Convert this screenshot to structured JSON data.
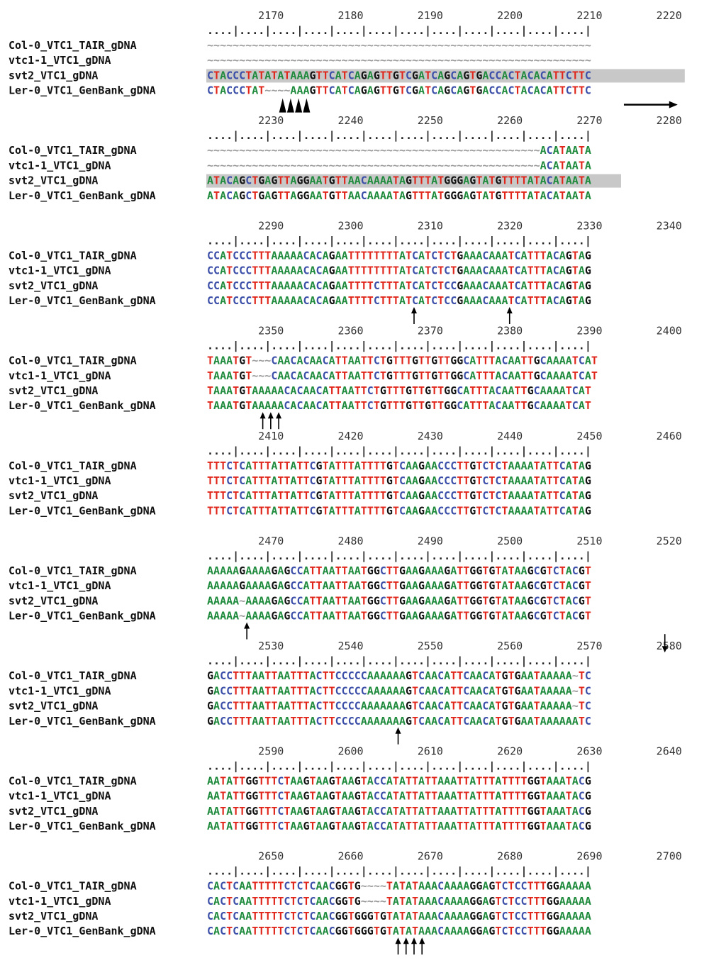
{
  "colors": {
    "A": "#1e8a3c",
    "C": "#3b4ea8",
    "G": "#111111",
    "T": "#e0261b",
    "gap": "#9a9a9a",
    "highlight": "#c8c8c8",
    "mark": "#000000"
  },
  "ruler_pattern": "....|....|....|....|....|....|....|....|....|....|....|....|",
  "blocks": [
    {
      "numbers": [
        "2170",
        "2180",
        "2190",
        "2200",
        "2210",
        "2220"
      ],
      "rows": [
        {
          "label": "Col-0_VTC1_TAIR_gDNA",
          "seq": "~~~~~~~~~~~~~~~~~~~~~~~~~~~~~~~~~~~~~~~~~~~~~~~~~~~~~~~~~~~~"
        },
        {
          "label": "vtc1-1_VTC1_gDNA",
          "seq": "~~~~~~~~~~~~~~~~~~~~~~~~~~~~~~~~~~~~~~~~~~~~~~~~~~~~~~~~~~~~"
        },
        {
          "label": "svt2_VTC1_gDNA",
          "seq": "CTACCCTATATATAAAGTTCATCAGAGTTGTCGATCAGCAGTGACCACTACACATTCTTC",
          "highlight": [
            0,
            60
          ]
        },
        {
          "label": "Ler-0_VTC1_GenBank_gDNA",
          "seq": "CTACCCTAT~~~~AAAGTTCATCAGAGTTGTCGATCAGCAGTGACCACTACACATTCTTC"
        }
      ],
      "marks": [
        {
          "type": "triangles",
          "cols": [
            9,
            10,
            11,
            12
          ]
        },
        {
          "type": "right-arrow",
          "from": 52,
          "to": 60
        }
      ]
    },
    {
      "numbers": [
        "2230",
        "2240",
        "2250",
        "2260",
        "2270",
        "2280"
      ],
      "rows": [
        {
          "label": "Col-0_VTC1_TAIR_gDNA",
          "seq": "~~~~~~~~~~~~~~~~~~~~~~~~~~~~~~~~~~~~~~~~~~~~~~~~~~~~ACATAATA"
        },
        {
          "label": "vtc1-1_VTC1_gDNA",
          "seq": "~~~~~~~~~~~~~~~~~~~~~~~~~~~~~~~~~~~~~~~~~~~~~~~~~~~~ACATAATA"
        },
        {
          "label": "svt2_VTC1_gDNA",
          "seq": "ATACAGCTGAGTTAGGAATGTTAACAAAATAGTTTATGGGAGTATGTTTTATACATAATA",
          "highlight": [
            0,
            52
          ]
        },
        {
          "label": "Ler-0_VTC1_GenBank_gDNA",
          "seq": "ATACAGCTGAGTTAGGAATGTTAACAAAATAGTTTATGGGAGTATGTTTTATACATAATA"
        }
      ],
      "marks": []
    },
    {
      "numbers": [
        "2290",
        "2300",
        "2310",
        "2320",
        "2330",
        "2340"
      ],
      "rows": [
        {
          "label": "Col-0_VTC1_TAIR_gDNA",
          "seq": "CCATCCCTTTAAAAACACAGAATTTTTTTTATCATCTCTGAAACAAATCATTTACAGTAG"
        },
        {
          "label": "vtc1-1_VTC1_gDNA",
          "seq": "CCATCCCTTTAAAAACACAGAATTTTTTTTATCATCTCTGAAACAAATCATTTACAGTAG"
        },
        {
          "label": "svt2_VTC1_gDNA",
          "seq": "CCATCCCTTTAAAAACACAGAATTTTCTTTATCATCTCCGAAACAAATCATTTACAGTAG"
        },
        {
          "label": "Ler-0_VTC1_GenBank_gDNA",
          "seq": "CCATCCCTTTAAAAACACAGAATTTTCTTTATCATCTCCGAAACAAATCATTTACAGTAG"
        }
      ],
      "marks": [
        {
          "type": "up-arrows",
          "cols": [
            26,
            38
          ]
        }
      ]
    },
    {
      "numbers": [
        "2350",
        "2360",
        "2370",
        "2380",
        "2390",
        "2400"
      ],
      "rows": [
        {
          "label": "Col-0_VTC1_TAIR_gDNA",
          "seq": "TAAATGT~~~CAACACAACATTAATTCTGTTTGTTGTTGGCATTTACAATTGCAAAATCAT"
        },
        {
          "label": "vtc1-1_VTC1_gDNA",
          "seq": "TAAATGT~~~CAACACAACATTAATTCTGTTTGTTGTTGGCATTTACAATTGCAAAATCAT"
        },
        {
          "label": "svt2_VTC1_gDNA",
          "seq": "TAAATGTAAAAACACAACATTAATTCTGTTTGTTGTTGGCATTTACAATTGCAAAATCAT"
        },
        {
          "label": "Ler-0_VTC1_GenBank_gDNA",
          "seq": "TAAATGTAAAAACACAACATTAATTCTGTTTGTTGTTGGCATTTACAATTGCAAAATCAT"
        }
      ],
      "marks": [
        {
          "type": "up-arrows",
          "cols": [
            7,
            8,
            9
          ]
        }
      ]
    },
    {
      "numbers": [
        "2410",
        "2420",
        "2430",
        "2440",
        "2450",
        "2460"
      ],
      "rows": [
        {
          "label": "Col-0_VTC1_TAIR_gDNA",
          "seq": "TTTCTCATTTATTATTCGTATTTATTTTGTCAAGAACCCTTGTCTCTAAAATATTCATAG"
        },
        {
          "label": "vtc1-1_VTC1_gDNA",
          "seq": "TTTCTCATTTATTATTCGTATTTATTTTGTCAAGAACCCTTGTCTCTAAAATATTCATAG"
        },
        {
          "label": "svt2_VTC1_gDNA",
          "seq": "TTTCTCATTTATTATTCGTATTTATTTTGTCAAGAACCCTTGTCTCTAAAATATTCATAG"
        },
        {
          "label": "Ler-0_VTC1_GenBank_gDNA",
          "seq": "TTTCTCATTTATTATTCGTATTTATTTTGTCAAGAACCCTTGTCTCTAAAATATTCATAG"
        }
      ],
      "marks": []
    },
    {
      "numbers": [
        "2470",
        "2480",
        "2490",
        "2500",
        "2510",
        "2520"
      ],
      "rows": [
        {
          "label": "Col-0_VTC1_TAIR_gDNA",
          "seq": "AAAAAGAAAAGAGCCATTAATTAATGGCTTGAAGAAAGATTGGTGTATAAGCGTCTACGT"
        },
        {
          "label": "vtc1-1_VTC1_gDNA",
          "seq": "AAAAAGAAAAGAGCCATTAATTAATGGCTTGAAGAAAGATTGGTGTATAAGCGTCTACGT"
        },
        {
          "label": "svt2_VTC1_gDNA",
          "seq": "AAAAA~AAAAGAGCCATTAATTAATGGCTTGAAGAAAGATTGGTGTATAAGCGTCTACGT"
        },
        {
          "label": "Ler-0_VTC1_GenBank_gDNA",
          "seq": "AAAAA~AAAAGAGCCATTAATTAATGGCTTGAAGAAAGATTGGTGTATAAGCGTCTACGT"
        }
      ],
      "marks": [
        {
          "type": "up-arrows",
          "cols": [
            5
          ]
        }
      ]
    },
    {
      "numbers": [
        "2530",
        "2540",
        "2550",
        "2560",
        "2570",
        "2580"
      ],
      "rows": [
        {
          "label": "Col-0_VTC1_TAIR_gDNA",
          "seq": "GACCTTTAATTAATTTACTTCCCCCAAAAAAGTCAACATTCAACATGTGAATAAAAA~TC"
        },
        {
          "label": "vtc1-1_VTC1_gDNA",
          "seq": "GACCTTTAATTAATTTACTTCCCCCAAAAAAGTCAACATTCAACATGTGAATAAAAA~TC"
        },
        {
          "label": "svt2_VTC1_gDNA",
          "seq": "GACCTTTAATTAATTTACTTCCCCAAAAAAAGTCAACATTCAACATGTGAATAAAAA~TC"
        },
        {
          "label": "Ler-0_VTC1_GenBank_gDNA",
          "seq": "GACCTTTAATTAATTTACTTCCCCAAAAAAAGTCAACATTCAACATGTGAATAAAAAATC"
        }
      ],
      "marks": [
        {
          "type": "up-arrows",
          "cols": [
            24
          ]
        },
        {
          "type": "down-arrow",
          "cols": [
            57
          ]
        }
      ]
    },
    {
      "numbers": [
        "2590",
        "2600",
        "2610",
        "2620",
        "2630",
        "2640"
      ],
      "rows": [
        {
          "label": "Col-0_VTC1_TAIR_gDNA",
          "seq": "AATATTGGTTTCTAAGTAAGTAAGTACCATATTATTAAATTATTTATTTTGGTAAATACG"
        },
        {
          "label": "vtc1-1_VTC1_gDNA",
          "seq": "AATATTGGTTTCTAAGTAAGTAAGTACCATATTATTAAATTATTTATTTTGGTAAATACG"
        },
        {
          "label": "svt2_VTC1_gDNA",
          "seq": "AATATTGGTTTCTAAGTAAGTAAGTACCATATTATTAAATTATTTATTTTGGTAAATACG"
        },
        {
          "label": "Ler-0_VTC1_GenBank_gDNA",
          "seq": "AATATTGGTTTCTAAGTAAGTAAGTACCATATTATTAAATTATTTATTTTGGTAAATACG"
        }
      ],
      "marks": []
    },
    {
      "numbers": [
        "2650",
        "2660",
        "2670",
        "2680",
        "2690",
        "2700"
      ],
      "rows": [
        {
          "label": "Col-0_VTC1_TAIR_gDNA",
          "seq": "CACTCAATTTTTCTCTCAACGGTG~~~~TATATAAACAAAAGGAGTCTCCTTTGGAAAAA"
        },
        {
          "label": "vtc1-1_VTC1_gDNA",
          "seq": "CACTCAATTTTTCTCTCAACGGTG~~~~TATATAAACAAAAGGAGTCTCCTTTGGAAAAA"
        },
        {
          "label": "svt2_VTC1_gDNA",
          "seq": "CACTCAATTTTTCTCTCAACGGTGGGTGTATATAAACAAAAGGAGTCTCCTTTGGAAAAA"
        },
        {
          "label": "Ler-0_VTC1_GenBank_gDNA",
          "seq": "CACTCAATTTTTCTCTCAACGGTGGGTGTATATAAACAAAAGGAGTCTCCTTTGGAAAAA"
        }
      ],
      "marks": [
        {
          "type": "up-arrows",
          "cols": [
            24,
            25,
            26,
            27
          ]
        }
      ]
    }
  ]
}
